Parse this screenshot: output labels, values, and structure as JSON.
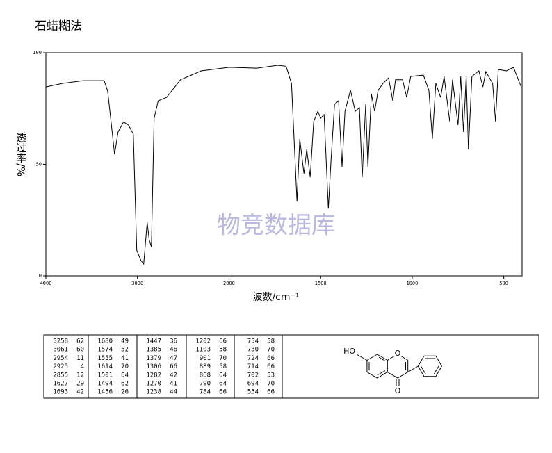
{
  "chart_data": {
    "type": "line",
    "title": "石蜡糊法",
    "xlabel": "波数/cm⁻¹",
    "ylabel": "透过率/%",
    "watermark": "物竞数据库",
    "xlim": [
      4000,
      400
    ],
    "xticks": [
      4000,
      3000,
      2000,
      1500,
      1000,
      500
    ],
    "ylim": [
      0,
      100
    ],
    "yticks": [
      0,
      50,
      100
    ],
    "color": "#000000",
    "x": [
      4000,
      3818,
      3591,
      3364,
      3326,
      3288,
      3250,
      3212,
      3152,
      3098,
      3045,
      3008,
      2962,
      2932,
      2894,
      2871,
      2848,
      2818,
      2773,
      2682,
      2530,
      2303,
      2000,
      1848,
      1735,
      1689,
      1659,
      1629,
      1614,
      1591,
      1576,
      1557,
      1538,
      1515,
      1500,
      1481,
      1458,
      1443,
      1424,
      1402,
      1383,
      1367,
      1337,
      1311,
      1288,
      1273,
      1254,
      1242,
      1223,
      1205,
      1186,
      1159,
      1129,
      1106,
      1091,
      1053,
      1030,
      1008,
      939,
      909,
      890,
      871,
      845,
      826,
      795,
      780,
      750,
      735,
      720,
      705,
      693,
      674,
      636,
      614,
      598,
      561,
      545,
      530,
      485,
      447,
      405
    ],
    "values": [
      84.7,
      86.3,
      87.5,
      87.5,
      83,
      69,
      54.5,
      64.5,
      69,
      67.6,
      63.5,
      11.5,
      6.9,
      5.3,
      24,
      16,
      13,
      70.7,
      78.5,
      80,
      87.9,
      91.9,
      93.5,
      93.1,
      94.4,
      94,
      86.3,
      33.3,
      61.4,
      45.8,
      56.7,
      44.2,
      69.2,
      73.8,
      70.7,
      72.3,
      30.2,
      52,
      76.9,
      78.5,
      48.9,
      73.8,
      83.2,
      73.8,
      75.4,
      44.2,
      76.9,
      48.9,
      81.6,
      73.8,
      83.2,
      86.3,
      88.8,
      78.5,
      87.9,
      87.9,
      80,
      89.4,
      90,
      83.2,
      61.4,
      86.3,
      80,
      89.4,
      69.2,
      87.9,
      67.6,
      89.4,
      64.5,
      89.4,
      56.7,
      89.4,
      91.9,
      84.7,
      91.6,
      86.3,
      69.2,
      92.5,
      91.9,
      93.5,
      84.7
    ]
  },
  "peak_table": [
    [
      [
        "3258",
        "62"
      ],
      [
        "3061",
        "60"
      ],
      [
        "2954",
        "11"
      ],
      [
        "2925",
        "4"
      ],
      [
        "2855",
        "12"
      ],
      [
        "1627",
        "29"
      ],
      [
        "1693",
        "42"
      ]
    ],
    [
      [
        "1680",
        "49"
      ],
      [
        "1574",
        "52"
      ],
      [
        "1555",
        "41"
      ],
      [
        "1614",
        "70"
      ],
      [
        "1501",
        "64"
      ],
      [
        "1494",
        "62"
      ],
      [
        "1456",
        "26"
      ]
    ],
    [
      [
        "1447",
        "36"
      ],
      [
        "1385",
        "46"
      ],
      [
        "1379",
        "47"
      ],
      [
        "1306",
        "66"
      ],
      [
        "1282",
        "42"
      ],
      [
        "1270",
        "41"
      ],
      [
        "1238",
        "44"
      ]
    ],
    [
      [
        "1202",
        "66"
      ],
      [
        "1103",
        "58"
      ],
      [
        "901",
        "70"
      ],
      [
        "889",
        "58"
      ],
      [
        "868",
        "64"
      ],
      [
        "790",
        "64"
      ],
      [
        "784",
        "66"
      ]
    ],
    [
      [
        "754",
        "58"
      ],
      [
        "730",
        "70"
      ],
      [
        "724",
        "66"
      ],
      [
        "714",
        "66"
      ],
      [
        "702",
        "53"
      ],
      [
        "694",
        "70"
      ],
      [
        "554",
        "66"
      ]
    ]
  ],
  "structure": {
    "hydroxyl": "HO",
    "ring_oxygen": "O",
    "carbonyl_oxygen": "O"
  }
}
